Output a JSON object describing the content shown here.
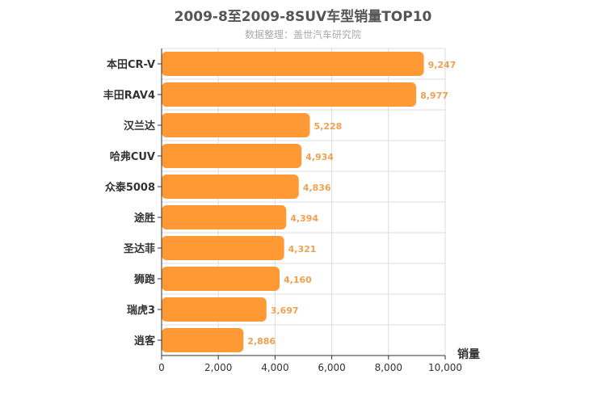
{
  "title": "2009-8至2009-8SUV车型销量TOP10",
  "subtitle": "数据整理：盖世汽车研究院",
  "colors": {
    "bar": "#ff9933",
    "value_label": "#f0a050",
    "grid": "#dddddd",
    "axis": "#333333"
  },
  "chart_data": {
    "type": "bar",
    "orientation": "horizontal",
    "title": "2009-8至2009-8SUV车型销量TOP10",
    "subtitle": "数据整理：盖世汽车研究院",
    "xlabel": "销量",
    "ylabel": "",
    "xlim": [
      0,
      10000
    ],
    "xticks": [
      0,
      2000,
      4000,
      6000,
      8000,
      10000
    ],
    "xtick_labels": [
      "0",
      "2,000",
      "4,000",
      "6,000",
      "8,000",
      "10,000"
    ],
    "grid": true,
    "categories": [
      "本田CR-V",
      "丰田RAV4",
      "汉兰达",
      "哈弗CUV",
      "众泰5008",
      "途胜",
      "圣达菲",
      "狮跑",
      "瑞虎3",
      "逍客"
    ],
    "values": [
      9247,
      8977,
      5228,
      4934,
      4836,
      4394,
      4321,
      4160,
      3697,
      2886
    ],
    "value_labels": [
      "9,247",
      "8,977",
      "5,228",
      "4,934",
      "4,836",
      "4,394",
      "4,321",
      "4,160",
      "3,697",
      "2,886"
    ]
  }
}
